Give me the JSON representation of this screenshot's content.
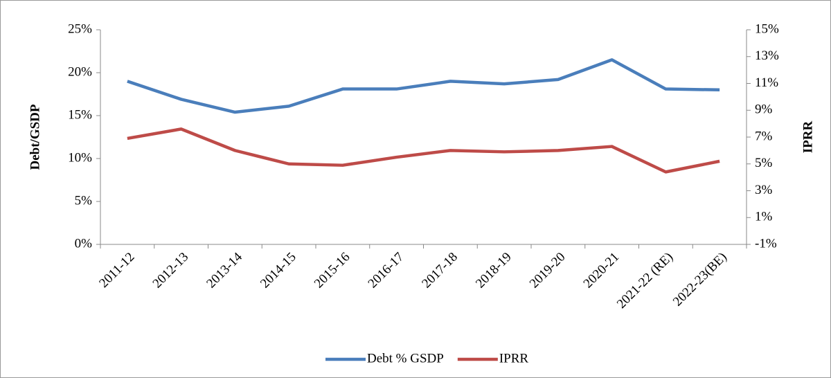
{
  "chart_data": {
    "type": "line",
    "categories": [
      "2011-12",
      "2012-13",
      "2013-14",
      "2014-15",
      "2015-16",
      "2016-17",
      "2017-18",
      "2018-19",
      "2019-20",
      "2020-21",
      "2021-22 (RE)",
      "2022-23(BE)"
    ],
    "series": [
      {
        "name": "Debt % GSDP",
        "color": "#4a7ebb",
        "values": [
          19.0,
          16.9,
          15.4,
          16.1,
          18.1,
          18.1,
          19.0,
          18.7,
          19.2,
          21.5,
          18.1,
          18.0
        ]
      },
      {
        "name": "IPRR",
        "color": "#be4b48",
        "axis": "y2",
        "values": [
          6.9,
          7.6,
          6.0,
          5.0,
          4.9,
          5.5,
          6.0,
          5.9,
          6.0,
          6.3,
          4.4,
          5.2
        ]
      }
    ],
    "ylabel": "Debt/GSDP",
    "y2label": "IPRR",
    "ylim": [
      0,
      25
    ],
    "yticks": [
      {
        "value": 0,
        "label": "0%"
      },
      {
        "value": 5,
        "label": "5%"
      },
      {
        "value": 10,
        "label": "10%"
      },
      {
        "value": 15,
        "label": "15%"
      },
      {
        "value": 20,
        "label": "20%"
      },
      {
        "value": 25,
        "label": "25%"
      }
    ],
    "y2lim": [
      -1,
      15
    ],
    "y2ticks": [
      {
        "value": -1,
        "label": "-1%"
      },
      {
        "value": 1,
        "label": "1%"
      },
      {
        "value": 3,
        "label": "3%"
      },
      {
        "value": 5,
        "label": "5%"
      },
      {
        "value": 7,
        "label": "7%"
      },
      {
        "value": 9,
        "label": "9%"
      },
      {
        "value": 11,
        "label": "11%"
      },
      {
        "value": 13,
        "label": "13%"
      },
      {
        "value": 15,
        "label": "15%"
      }
    ],
    "legend": "bottom"
  }
}
